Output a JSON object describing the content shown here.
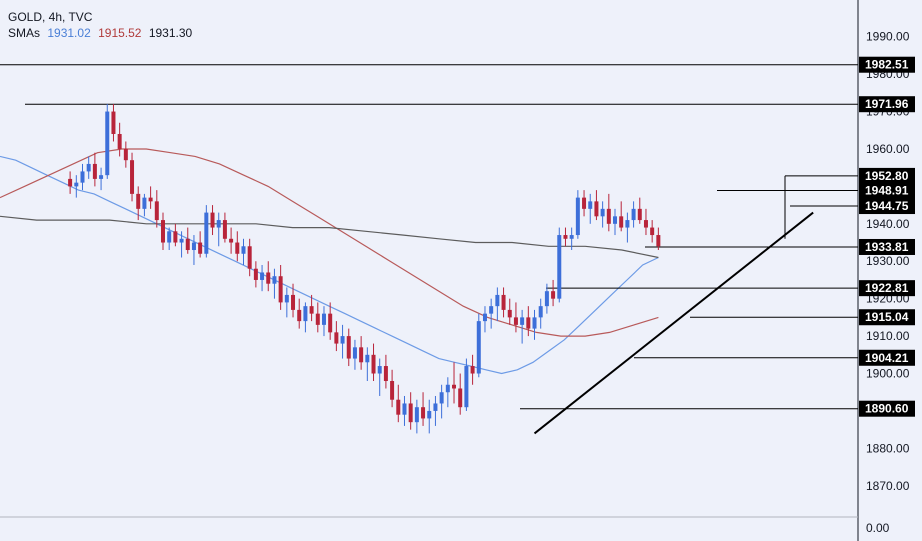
{
  "header": {
    "symbol": "GOLD, 4h, TVC",
    "sma_label": "SMAs",
    "sma_values": [
      {
        "value": "1931.02",
        "color": "#4a7fd6"
      },
      {
        "value": "1915.52",
        "color": "#b03a3a"
      },
      {
        "value": "1931.30",
        "color": "#131722"
      }
    ]
  },
  "colors": {
    "background": "#eef1fa",
    "bull": "#3d6fd9",
    "bear": "#b8243a",
    "sma_fast": "#6d9be6",
    "sma_mid": "#b85a5a",
    "sma_slow": "#5c5c5c",
    "trendline": "#000000",
    "level_line": "#000000",
    "label_bg": "#000000"
  },
  "chart_data": {
    "type": "candlestick",
    "title": "GOLD, 4h, TVC",
    "ylim": [
      1863,
      1999
    ],
    "y_ticks": [
      1870,
      1880,
      1890,
      1900,
      1910,
      1920,
      1930,
      1940,
      1950,
      1960,
      1970,
      1980,
      1990
    ],
    "volume_axis_label": "0.00",
    "price_levels": [
      1982.51,
      1971.96,
      1952.8,
      1948.91,
      1944.75,
      1933.81,
      1922.81,
      1915.04,
      1904.21,
      1890.6
    ],
    "last_price": 1933.81,
    "candles": [
      [
        1952,
        1954,
        1948,
        1950
      ],
      [
        1950,
        1953,
        1947,
        1951
      ],
      [
        1951,
        1956,
        1949,
        1954
      ],
      [
        1954,
        1958,
        1952,
        1956
      ],
      [
        1956,
        1959,
        1950,
        1952
      ],
      [
        1952,
        1955,
        1949,
        1953
      ],
      [
        1953,
        1972,
        1952,
        1970
      ],
      [
        1970,
        1972,
        1962,
        1964
      ],
      [
        1964,
        1967,
        1958,
        1960
      ],
      [
        1960,
        1962,
        1955,
        1957
      ],
      [
        1957,
        1959,
        1946,
        1948
      ],
      [
        1948,
        1950,
        1941,
        1944
      ],
      [
        1944,
        1948,
        1942,
        1947
      ],
      [
        1947,
        1950,
        1944,
        1946
      ],
      [
        1946,
        1949,
        1939,
        1941
      ],
      [
        1941,
        1943,
        1933,
        1935
      ],
      [
        1935,
        1939,
        1933,
        1938
      ],
      [
        1938,
        1940,
        1934,
        1935
      ],
      [
        1935,
        1938,
        1931,
        1936
      ],
      [
        1936,
        1939,
        1932,
        1933
      ],
      [
        1933,
        1937,
        1929,
        1935
      ],
      [
        1935,
        1938,
        1931,
        1932
      ],
      [
        1932,
        1945,
        1931,
        1943
      ],
      [
        1943,
        1945,
        1937,
        1939
      ],
      [
        1939,
        1943,
        1934,
        1941
      ],
      [
        1941,
        1943,
        1935,
        1936
      ],
      [
        1936,
        1939,
        1932,
        1935
      ],
      [
        1935,
        1938,
        1930,
        1932
      ],
      [
        1932,
        1936,
        1929,
        1934
      ],
      [
        1934,
        1936,
        1926,
        1928
      ],
      [
        1928,
        1930,
        1923,
        1925
      ],
      [
        1925,
        1929,
        1922,
        1927
      ],
      [
        1927,
        1930,
        1922,
        1924
      ],
      [
        1924,
        1928,
        1920,
        1926
      ],
      [
        1926,
        1929,
        1917,
        1919
      ],
      [
        1919,
        1923,
        1915,
        1921
      ],
      [
        1921,
        1924,
        1915,
        1917
      ],
      [
        1917,
        1920,
        1912,
        1914
      ],
      [
        1914,
        1919,
        1911,
        1918
      ],
      [
        1918,
        1921,
        1914,
        1916
      ],
      [
        1916,
        1919,
        1911,
        1913
      ],
      [
        1913,
        1918,
        1910,
        1916
      ],
      [
        1916,
        1919,
        1909,
        1911
      ],
      [
        1911,
        1914,
        1906,
        1908
      ],
      [
        1908,
        1913,
        1904,
        1910
      ],
      [
        1910,
        1912,
        1902,
        1904
      ],
      [
        1904,
        1909,
        1901,
        1907
      ],
      [
        1907,
        1910,
        1901,
        1903
      ],
      [
        1903,
        1907,
        1898,
        1905
      ],
      [
        1905,
        1908,
        1898,
        1900
      ],
      [
        1900,
        1904,
        1894,
        1902
      ],
      [
        1902,
        1905,
        1896,
        1898
      ],
      [
        1898,
        1901,
        1891,
        1893
      ],
      [
        1893,
        1897,
        1887,
        1889
      ],
      [
        1889,
        1894,
        1886,
        1892
      ],
      [
        1892,
        1895,
        1885,
        1887
      ],
      [
        1887,
        1893,
        1884,
        1891
      ],
      [
        1891,
        1895,
        1886,
        1888
      ],
      [
        1888,
        1893,
        1884,
        1890
      ],
      [
        1890,
        1894,
        1886,
        1892
      ],
      [
        1892,
        1897,
        1888,
        1895
      ],
      [
        1895,
        1899,
        1891,
        1897
      ],
      [
        1897,
        1903,
        1892,
        1896
      ],
      [
        1896,
        1900,
        1889,
        1891
      ],
      [
        1891,
        1904,
        1890,
        1902
      ],
      [
        1902,
        1905,
        1897,
        1900
      ],
      [
        1900,
        1916,
        1899,
        1914
      ],
      [
        1914,
        1918,
        1911,
        1916
      ],
      [
        1916,
        1920,
        1912,
        1918
      ],
      [
        1918,
        1923,
        1914,
        1921
      ],
      [
        1921,
        1923,
        1915,
        1917
      ],
      [
        1917,
        1920,
        1913,
        1915
      ],
      [
        1915,
        1919,
        1911,
        1913
      ],
      [
        1913,
        1917,
        1908,
        1915
      ],
      [
        1915,
        1918,
        1910,
        1912
      ],
      [
        1912,
        1917,
        1909,
        1915
      ],
      [
        1915,
        1920,
        1912,
        1918
      ],
      [
        1918,
        1924,
        1916,
        1922
      ],
      [
        1922,
        1925,
        1918,
        1920
      ],
      [
        1920,
        1939,
        1919,
        1937
      ],
      [
        1937,
        1939,
        1934,
        1936
      ],
      [
        1936,
        1939,
        1933,
        1937
      ],
      [
        1937,
        1949,
        1936,
        1947
      ],
      [
        1947,
        1949,
        1942,
        1944
      ],
      [
        1944,
        1948,
        1940,
        1946
      ],
      [
        1946,
        1949,
        1941,
        1942
      ],
      [
        1942,
        1946,
        1939,
        1944
      ],
      [
        1944,
        1948,
        1938,
        1940
      ],
      [
        1940,
        1944,
        1937,
        1942
      ],
      [
        1942,
        1946,
        1938,
        1939
      ],
      [
        1939,
        1943,
        1935,
        1941
      ],
      [
        1941,
        1946,
        1939,
        1944
      ],
      [
        1944,
        1947,
        1940,
        1941
      ],
      [
        1941,
        1944,
        1937,
        1939
      ],
      [
        1939,
        1941,
        1935,
        1937
      ],
      [
        1937,
        1939,
        1933,
        1934
      ]
    ],
    "series": [
      {
        "name": "",
        "values": [
          1958,
          1957,
          1955,
          1953,
          1951,
          1949,
          1948,
          1946,
          1944,
          1942,
          1940,
          1938,
          1936,
          1934,
          1932,
          1930,
          1928,
          1926,
          1924,
          1922,
          1920,
          1918,
          1916,
          1914,
          1912,
          1910,
          1908,
          1906,
          1904,
          1903,
          1902,
          1901,
          1900,
          1901,
          1903,
          1906,
          1909,
          1913,
          1917,
          1921,
          1925,
          1929,
          1931
        ]
      },
      {
        "name": "",
        "values": [
          1947,
          1950,
          1953,
          1956,
          1959,
          1960,
          1960,
          1959,
          1958,
          1956,
          1953,
          1950,
          1946,
          1942,
          1938,
          1934,
          1930,
          1926,
          1922,
          1918,
          1915,
          1913,
          1911,
          1910,
          1910,
          1911,
          1913,
          1915
        ]
      },
      {
        "name": "",
        "values": [
          1942,
          1941,
          1941,
          1941,
          1940,
          1940,
          1940,
          1940,
          1939,
          1939,
          1938,
          1937,
          1936,
          1935,
          1935,
          1934,
          1934,
          1933,
          1931
        ]
      }
    ],
    "trendline": {
      "x1_index": 75,
      "y1": 1884,
      "x2_index": 120,
      "y2": 1943
    }
  }
}
